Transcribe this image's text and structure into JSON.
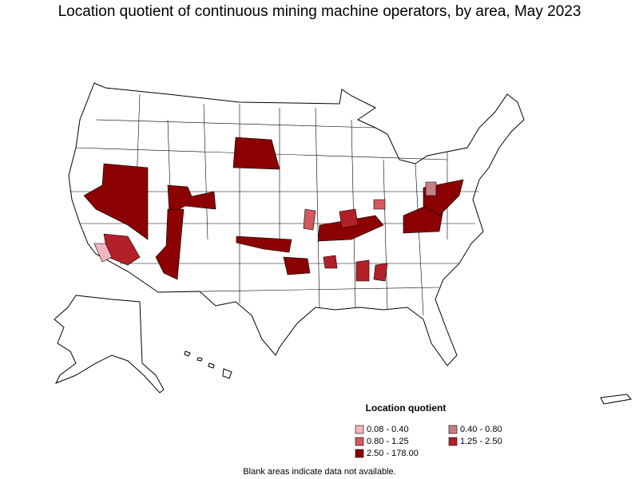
{
  "title": "Location quotient of continuous mining machine operators, by area, May 2023",
  "legend": {
    "title": "Location quotient",
    "items": [
      {
        "label": "0.08 - 0.40",
        "color": "#f4b6bf"
      },
      {
        "label": "0.40 - 0.80",
        "color": "#c58184"
      },
      {
        "label": "0.80 - 1.25",
        "color": "#d35a5f"
      },
      {
        "label": "1.25 - 2.50",
        "color": "#b22028"
      },
      {
        "label": "2.50 - 178.00",
        "color": "#8b0000"
      }
    ]
  },
  "note": "Blank areas indicate data not available."
}
